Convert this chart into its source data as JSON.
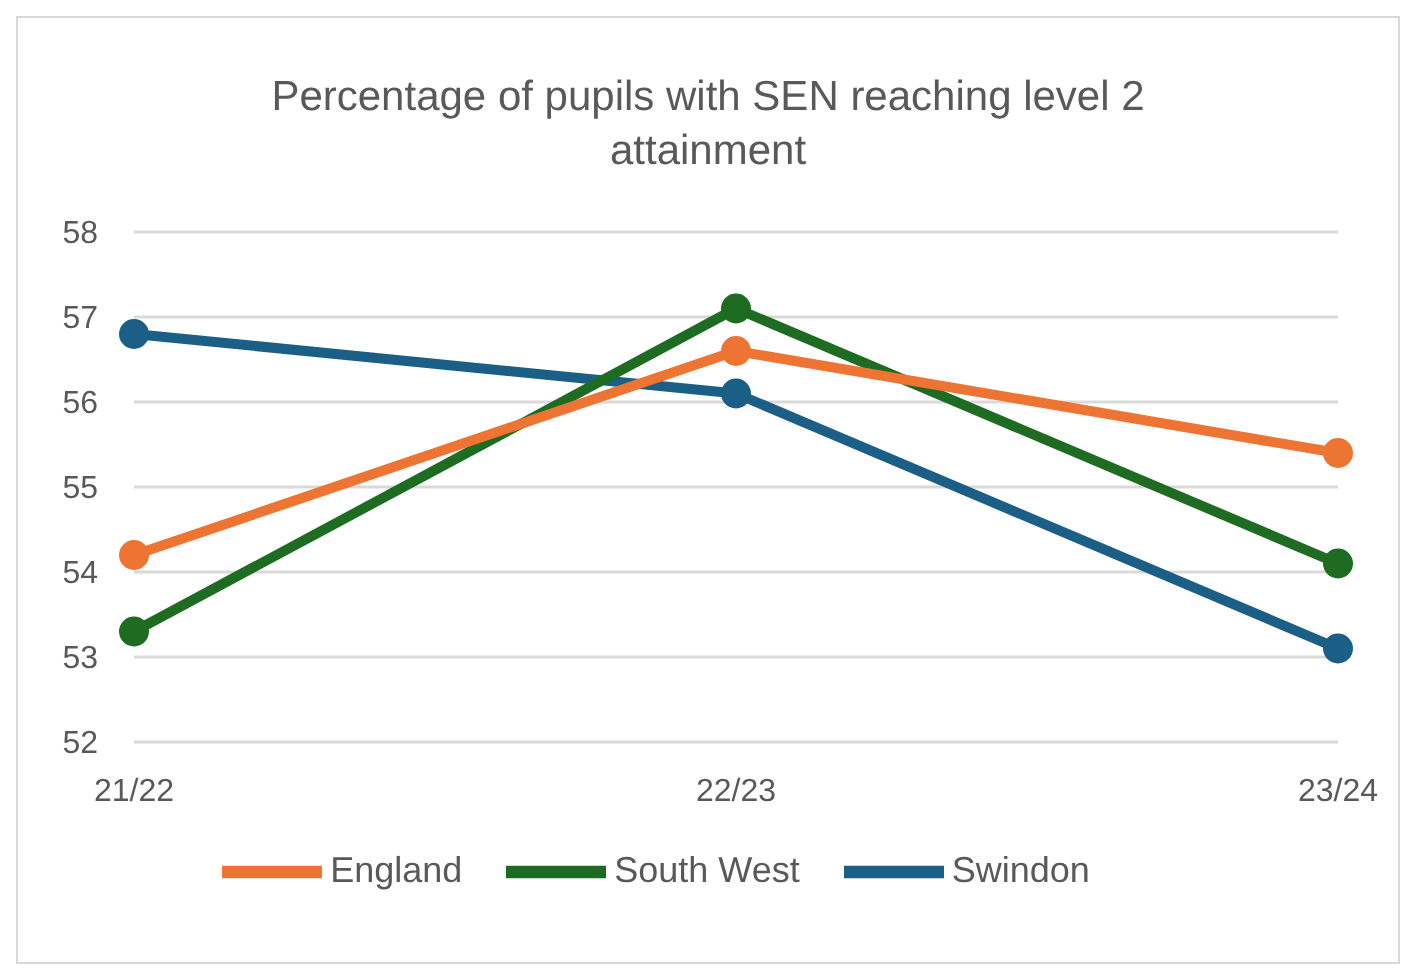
{
  "chart_data": {
    "type": "line",
    "title": "Percentage of pupils with SEN reaching level 2 attainment",
    "categories": [
      "21/22",
      "22/23",
      "23/24"
    ],
    "series": [
      {
        "name": "Swindon",
        "color": "#1b5e86",
        "values": [
          56.8,
          56.1,
          53.1
        ]
      },
      {
        "name": "South West",
        "color": "#1e6b22",
        "values": [
          53.3,
          57.1,
          54.1
        ]
      },
      {
        "name": "England",
        "color": "#ed7432",
        "values": [
          54.2,
          56.6,
          55.4
        ]
      }
    ],
    "ylim": [
      52,
      58
    ],
    "yticks": [
      52,
      53,
      54,
      55,
      56,
      57,
      58
    ],
    "grid": "y",
    "legend": "bottom",
    "marker": "circle",
    "line_style": "solid"
  }
}
